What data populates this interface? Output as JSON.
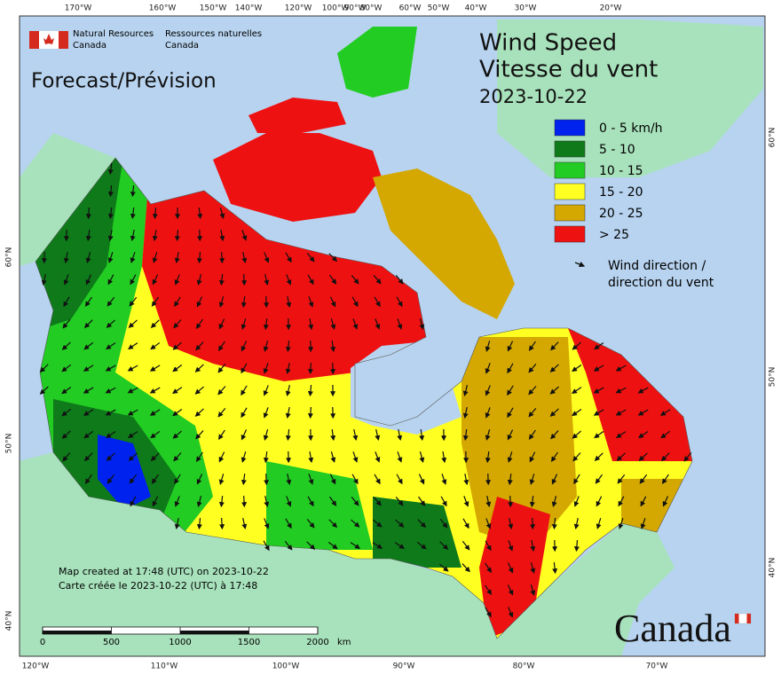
{
  "header": {
    "agency_en_1": "Natural Resources",
    "agency_en_2": "Canada",
    "agency_fr_1": "Ressources naturelles",
    "agency_fr_2": "Canada",
    "subtitle": "Forecast/Prévision",
    "title_en": "Wind Speed",
    "title_fr": "Vitesse du vent",
    "date": "2023-10-22"
  },
  "legend": {
    "items": [
      {
        "label": "0 - 5 km/h",
        "color": "#0022ee"
      },
      {
        "label": "5 - 10",
        "color": "#0e7a1a"
      },
      {
        "label": "10 - 15",
        "color": "#22cc22"
      },
      {
        "label": "15 - 20",
        "color": "#ffff22"
      },
      {
        "label": "20 - 25",
        "color": "#d4a800"
      },
      {
        "label": "> 25",
        "color": "#ee1111"
      }
    ],
    "direction_1": "Wind direction /",
    "direction_2": "direction du vent"
  },
  "graticule": {
    "top": [
      "170°W",
      "160°W",
      "150°W",
      "140°W",
      "120°W",
      "100°W",
      "90°W",
      "80°W",
      "60°W",
      "50°W",
      "40°W",
      "30°W",
      "20°W"
    ],
    "bottom": [
      "120°W",
      "110°W",
      "100°W",
      "90°W",
      "80°W",
      "70°W"
    ],
    "left": [
      "60°N",
      "50°N",
      "40°N"
    ],
    "right": [
      "60°N",
      "50°N",
      "40°N"
    ]
  },
  "footer": {
    "created_en": "Map created at 17:48 (UTC) on 2023-10-22",
    "created_fr": "Carte créée le 2023-10-22 (UTC) à 17:48",
    "wordmark": "Canada"
  },
  "scale": {
    "ticks": [
      0,
      500,
      1000,
      1500,
      2000
    ],
    "unit": "km"
  }
}
